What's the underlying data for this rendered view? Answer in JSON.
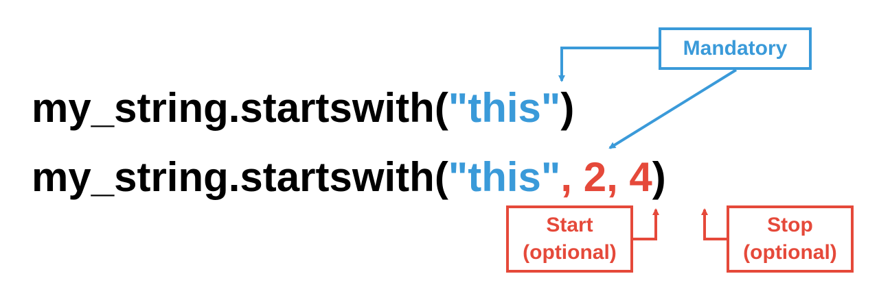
{
  "code": {
    "line1": {
      "prefix": "my_string.startswith(",
      "argument": "\"this\"",
      "suffix": ")"
    },
    "line2": {
      "prefix": "my_string.startswith(",
      "argument": "\"this\"",
      "optional_args": ", 2, 4",
      "suffix": ")"
    }
  },
  "labels": {
    "mandatory": "Mandatory",
    "start_line1": "Start",
    "start_line2": "(optional)",
    "stop_line1": "Stop",
    "stop_line2": "(optional)"
  },
  "colors": {
    "mandatory": "#3a9ad9",
    "optional": "#e5493a",
    "code": "#000000"
  }
}
